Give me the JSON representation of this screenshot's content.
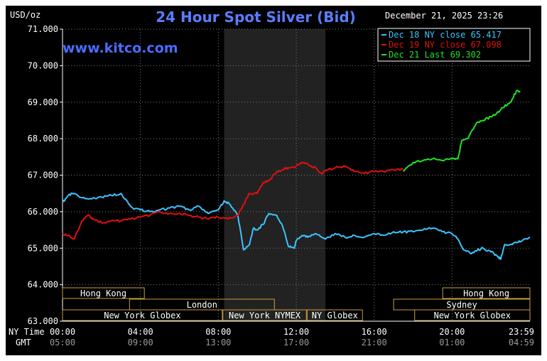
{
  "header": {
    "units": "USD/oz",
    "title": "24 Hour Spot Silver (Bid)",
    "timestamp": "December 21, 2025 23:26",
    "watermark": "www.kitco.com"
  },
  "colors": {
    "background": "#000000",
    "title": "#5a7dff",
    "watermark": "#4a6cff",
    "cyan": "#3cc3ff",
    "red": "#e01010",
    "green": "#25e025",
    "session_line": "#c8a040",
    "shade": "#222222"
  },
  "axis": {
    "row_labels": [
      "NY Time",
      "GMT"
    ]
  },
  "sessions": [
    {
      "label": "Hong Kong",
      "start": 0,
      "end": 10.5,
      "row": 0
    },
    {
      "label": "London",
      "start": 8.6,
      "end": 27.2,
      "row": 1
    },
    {
      "label": "New York Globex",
      "start": 0,
      "end": 20.5,
      "row": 2
    },
    {
      "label": "New York NYMEX",
      "start": 20.6,
      "end": 31.3,
      "row": 2
    },
    {
      "label": "NY Globex",
      "start": 31.4,
      "end": 38.5,
      "row": 2
    },
    {
      "label": "Hong Kong",
      "start": 48.8,
      "end": 60,
      "row": 0
    },
    {
      "label": "Sydney",
      "start": 42.5,
      "end": 60,
      "row": 1
    },
    {
      "label": "New York Globex",
      "start": 45.2,
      "end": 60,
      "row": 2
    }
  ],
  "chart_data": {
    "type": "line",
    "title": "24 Hour Spot Silver (Bid)",
    "ylabel": "USD/oz",
    "ylim": [
      63000,
      71000
    ],
    "y_ticks": [
      63000,
      64000,
      65000,
      66000,
      67000,
      68000,
      69000,
      70000,
      71000
    ],
    "y_tick_labels": [
      "63.000",
      "64.000",
      "65.000",
      "66.000",
      "67.000",
      "68.000",
      "69.000",
      "70.000",
      "71.000"
    ],
    "x_ticks_ny": [
      "00:00",
      "04:00",
      "08:00",
      "12:00",
      "16:00",
      "20:00",
      "23:59"
    ],
    "x_ticks_gmt": [
      "05:00",
      "09:00",
      "13:00",
      "17:00",
      "21:00",
      "01:00",
      "04:59"
    ],
    "xlim_hours": [
      0,
      24
    ],
    "shaded_region_hours": [
      8.3,
      13.5
    ],
    "legend_position": "top-right",
    "series": [
      {
        "name": "Dec 18 NY close 65.417",
        "color": "cyan",
        "x": [
          0,
          0.3,
          0.6,
          1,
          1.5,
          2,
          2.5,
          3,
          3.3,
          3.6,
          4,
          4.5,
          5,
          5.5,
          6,
          6.5,
          7,
          7.5,
          8,
          8.3,
          8.6,
          9,
          9.3,
          9.6,
          9.8,
          10,
          10.3,
          10.6,
          11,
          11.3,
          11.6,
          11.9,
          12,
          12.3,
          12.6,
          13,
          13.5,
          14,
          14.5,
          15,
          15.5,
          16,
          16.5,
          17,
          17.5,
          18,
          18.5,
          19,
          19.5,
          20,
          20.3,
          20.6,
          21,
          21.3,
          21.6,
          22,
          22.3,
          22.5,
          22.7,
          23,
          23.3,
          23.6,
          24
        ],
        "y": [
          66250,
          66450,
          66500,
          66380,
          66350,
          66400,
          66450,
          66500,
          66300,
          66100,
          66050,
          66000,
          66050,
          66100,
          66150,
          66050,
          66150,
          65950,
          66050,
          66300,
          66200,
          65900,
          64950,
          65100,
          65550,
          65500,
          65650,
          65950,
          65900,
          65600,
          65050,
          65000,
          65200,
          65350,
          65300,
          65400,
          65250,
          65400,
          65300,
          65350,
          65300,
          65400,
          65350,
          65450,
          65450,
          65450,
          65500,
          65550,
          65450,
          65400,
          65250,
          64950,
          64850,
          64950,
          65000,
          64900,
          64800,
          64700,
          65100,
          65100,
          65150,
          65200,
          65300
        ]
      },
      {
        "name": "Dec 19 NY close 67.098",
        "color": "red",
        "x": [
          0,
          0.3,
          0.6,
          1,
          1.3,
          1.6,
          2,
          2.5,
          3,
          3.5,
          4,
          4.5,
          5,
          5.5,
          6,
          6.5,
          7,
          7.5,
          8,
          8.5,
          9,
          9.3,
          9.6,
          10,
          10.3,
          10.6,
          11,
          11.3,
          11.6,
          12,
          12.3,
          12.6,
          13,
          13.3,
          13.6,
          14,
          14.5,
          15,
          15.5,
          16,
          16.5,
          17,
          17.5
        ],
        "y": [
          65400,
          65350,
          65250,
          65750,
          65900,
          65800,
          65700,
          65750,
          65750,
          65800,
          65850,
          65900,
          66000,
          65950,
          65950,
          65900,
          65850,
          65800,
          65850,
          65800,
          65900,
          66200,
          66500,
          66500,
          66800,
          66850,
          67100,
          67150,
          67200,
          67250,
          67350,
          67300,
          67200,
          67050,
          67150,
          67200,
          67250,
          67100,
          67050,
          67100,
          67100,
          67150,
          67150
        ]
      },
      {
        "name": "Dec 21 Last 69.302",
        "color": "green",
        "x": [
          17.5,
          18,
          18.5,
          19,
          19.5,
          20,
          20.3,
          20.5,
          20.8,
          21,
          21.3,
          21.6,
          22,
          22.3,
          22.6,
          23,
          23.3,
          23.5
        ],
        "y": [
          67100,
          67350,
          67400,
          67450,
          67400,
          67450,
          67450,
          67950,
          68000,
          68200,
          68450,
          68500,
          68600,
          68700,
          68850,
          69000,
          69300,
          69302
        ]
      }
    ]
  }
}
